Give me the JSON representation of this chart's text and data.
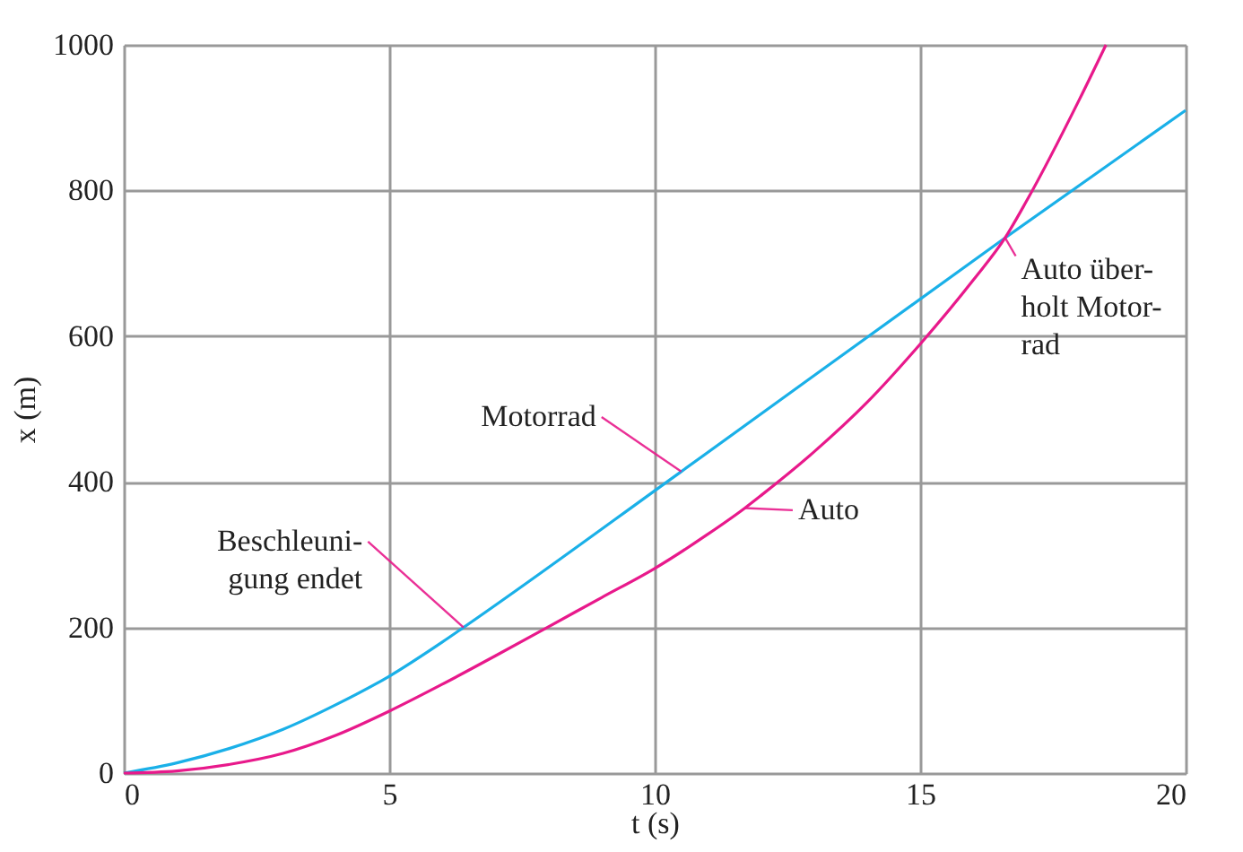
{
  "chart_data": {
    "type": "line",
    "xlabel": "t (s)",
    "ylabel": "x (m)",
    "series": [
      {
        "color": "#1ab0e8",
        "x": [
          0,
          1,
          2,
          3,
          4,
          5,
          6,
          6.4,
          10.5,
          16.6,
          20
        ],
        "values": [
          0,
          14,
          34,
          60,
          94,
          133,
          180,
          200,
          414,
          735,
          910
        ]
      },
      {
        "color": "#e8198b",
        "x": [
          0,
          1,
          2,
          3,
          4,
          5,
          6,
          7,
          8,
          9,
          10,
          11,
          11.7,
          12,
          13,
          14,
          15,
          16,
          16.6,
          17,
          18,
          18.5
        ],
        "values": [
          0,
          3,
          12,
          27,
          52,
          85,
          122,
          161,
          201,
          241,
          281,
          328,
          364,
          381,
          441,
          509,
          589,
          677,
          735,
          785,
          925,
          1000
        ]
      }
    ],
    "annotations": [
      {
        "text": "Motorrad",
        "x": 10.5,
        "y": 414
      },
      {
        "text": "Auto",
        "x": 11.7,
        "y": 364
      },
      {
        "text": "Beschleuni-\ngung endet",
        "x": 6.4,
        "y": 200
      },
      {
        "text": "Auto über-\nholt Motor-\nrad",
        "x": 16.6,
        "y": 735
      }
    ],
    "xlim": [
      0,
      20
    ],
    "ylim": [
      0,
      1000
    ],
    "xticks": [
      0,
      5,
      10,
      15,
      20
    ],
    "yticks": [
      0,
      200,
      400,
      600,
      800,
      1000
    ],
    "grid": true,
    "marker": "none",
    "line_style": "solid"
  }
}
